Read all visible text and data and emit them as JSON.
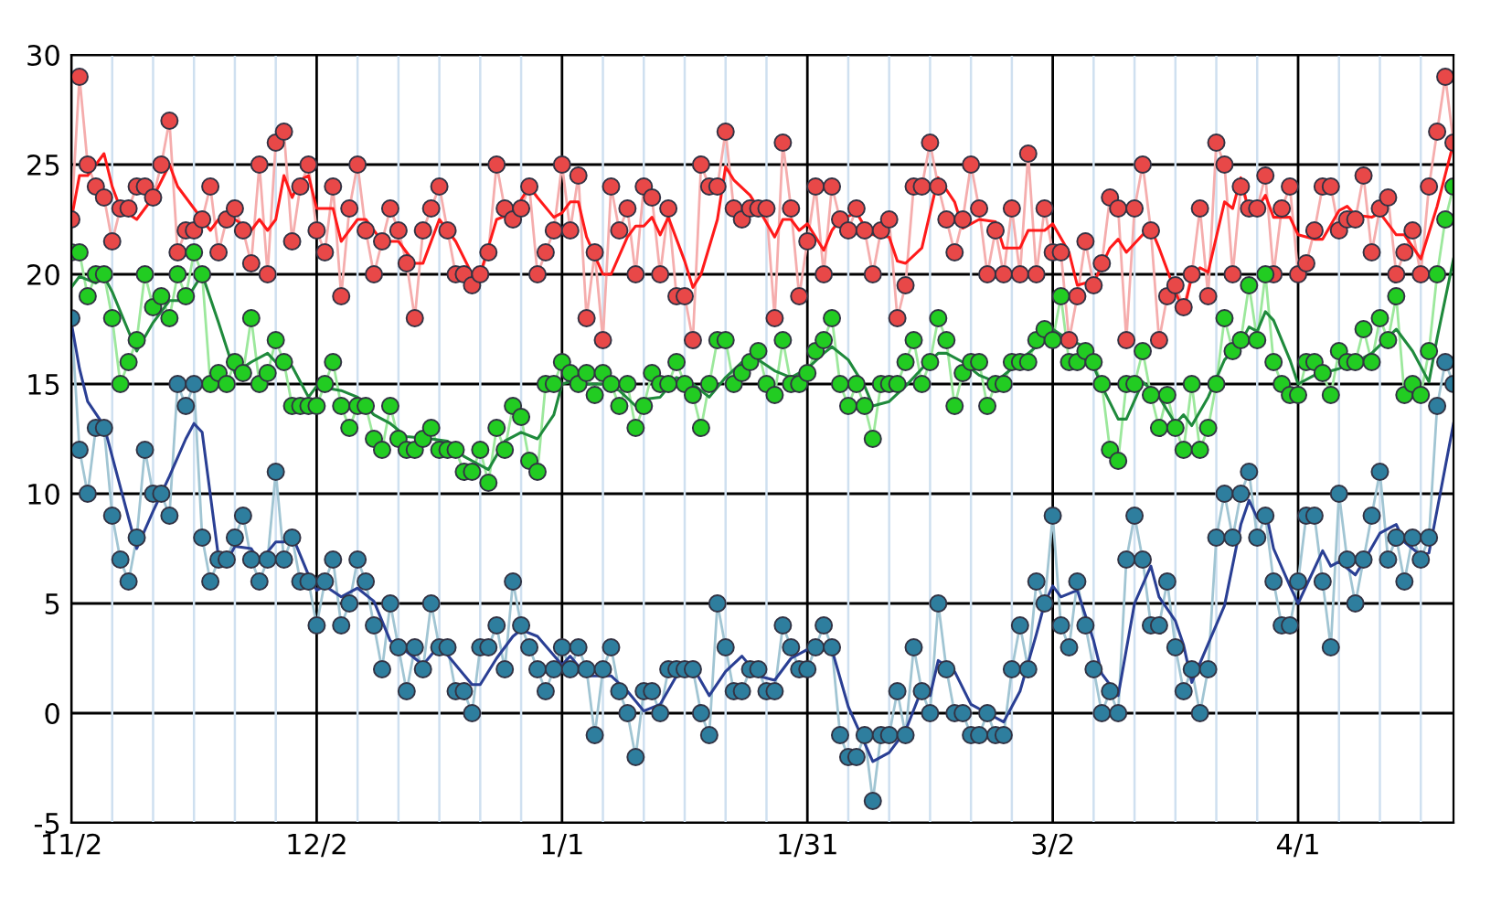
{
  "chart_data": {
    "type": "line",
    "categories": [
      "11/2",
      null,
      null,
      null,
      null,
      null,
      null,
      null,
      null,
      null,
      null,
      null,
      null,
      null,
      null,
      null,
      null,
      null,
      null,
      null,
      null,
      null,
      null,
      null,
      null,
      null,
      null,
      null,
      null,
      null,
      "12/2",
      null,
      null,
      null,
      null,
      null,
      null,
      null,
      null,
      null,
      null,
      null,
      null,
      null,
      null,
      null,
      null,
      null,
      null,
      null,
      null,
      null,
      null,
      null,
      null,
      null,
      null,
      null,
      null,
      null,
      "1/1",
      null,
      null,
      null,
      null,
      null,
      null,
      null,
      null,
      null,
      null,
      null,
      null,
      null,
      null,
      null,
      null,
      null,
      null,
      null,
      null,
      null,
      null,
      null,
      null,
      null,
      null,
      null,
      null,
      null,
      "1/31",
      null,
      null,
      null,
      null,
      null,
      null,
      null,
      null,
      null,
      null,
      null,
      null,
      null,
      null,
      null,
      null,
      null,
      null,
      null,
      null,
      null,
      null,
      null,
      null,
      null,
      null,
      null,
      null,
      null,
      "3/2",
      null,
      null,
      null,
      null,
      null,
      null,
      null,
      null,
      null,
      null,
      null,
      null,
      null,
      null,
      null,
      null,
      null,
      null,
      null,
      null,
      null,
      null,
      null,
      null,
      null,
      null,
      null,
      null,
      null,
      "4/1",
      null,
      null,
      null,
      null,
      null,
      null,
      null,
      null,
      null,
      null,
      null,
      null,
      null,
      null,
      null,
      null,
      null,
      null,
      null
    ],
    "series": [
      {
        "color": "#e84848",
        "marker": "circle",
        "values": [
          22.5,
          29,
          25,
          24,
          23.5,
          21.5,
          23,
          23,
          24,
          24,
          23.5,
          25,
          27,
          21,
          22,
          22,
          22.5,
          24,
          21,
          22.5,
          23,
          22,
          20.5,
          25,
          20,
          26,
          26.5,
          21.5,
          24,
          25,
          22,
          21,
          24,
          19,
          23,
          25,
          22,
          20,
          21.5,
          23,
          22,
          20.5,
          18,
          22,
          23,
          24,
          22,
          20,
          20,
          19.5,
          20,
          21,
          25,
          23,
          22.5,
          23,
          24,
          20,
          21,
          22,
          25,
          22,
          24.5,
          18,
          21,
          17,
          24,
          22,
          23,
          20,
          24,
          23.5,
          20,
          23,
          19,
          19,
          17,
          25,
          24,
          24,
          26.5,
          23,
          22.5,
          23,
          23,
          23,
          18,
          26,
          23,
          19,
          21.5,
          24,
          20,
          24,
          22.5,
          22,
          23,
          22,
          20,
          22,
          22.5,
          18,
          19.5,
          24,
          24,
          26,
          24,
          22.5,
          21,
          22.5,
          25,
          23,
          20,
          22,
          20,
          23,
          20,
          25.5,
          20,
          23,
          21,
          21,
          17,
          19,
          21.5,
          19.5,
          20.5,
          23.5,
          23,
          17,
          23,
          25,
          22,
          17,
          19,
          19.5,
          18.5,
          20,
          23,
          19,
          26,
          25,
          20,
          24,
          23,
          23,
          24.5,
          20,
          23,
          24,
          20,
          20.5,
          22,
          24,
          24,
          22,
          22.5,
          22.5,
          24.5,
          21,
          23,
          23.5,
          20,
          21,
          22,
          20,
          24,
          26.5,
          29,
          26
        ]
      },
      {
        "color": "#22cc22",
        "marker": "circle",
        "values": [
          21,
          21,
          19,
          20,
          20,
          18,
          15,
          16,
          17,
          20,
          18.5,
          19,
          18,
          20,
          19,
          21,
          20,
          15,
          15.5,
          15,
          16,
          15.5,
          18,
          15,
          15.5,
          17,
          16,
          14,
          14,
          14,
          14,
          15,
          16,
          14,
          13,
          14,
          14,
          12.5,
          12,
          14,
          12.5,
          12,
          12,
          12.5,
          13,
          12,
          12,
          12,
          11,
          11,
          12,
          10.5,
          13,
          12,
          14,
          13.5,
          11.5,
          11,
          15,
          15,
          16,
          15.5,
          15,
          15.5,
          14.5,
          15.5,
          15,
          14,
          15,
          13,
          14,
          15.5,
          15,
          15,
          16,
          15,
          14.5,
          13,
          15,
          17,
          17,
          15,
          15.5,
          16,
          16.5,
          15,
          14.5,
          17,
          15,
          15,
          15.5,
          16.5,
          17,
          18,
          15,
          14,
          15,
          14,
          12.5,
          15,
          15,
          15,
          16,
          17,
          15,
          16,
          18,
          17,
          14,
          15.5,
          16,
          16,
          14,
          15,
          15,
          16,
          16,
          16,
          17,
          17.5,
          17,
          19,
          16,
          16,
          16.5,
          16,
          15,
          12,
          11.5,
          15,
          15,
          16.5,
          14.5,
          13,
          14.5,
          13,
          12,
          15,
          12,
          13,
          15,
          18,
          16.5,
          17,
          19.5,
          17,
          20,
          16,
          15,
          14.5,
          14.5,
          16,
          16,
          15.5,
          14.5,
          16.5,
          16,
          16,
          17.5,
          16,
          18,
          17,
          19,
          14.5,
          15,
          14.5,
          16.5,
          20,
          22.5,
          24
        ]
      },
      {
        "color": "#2e7e9e",
        "marker": "circle",
        "values": [
          18,
          12,
          10,
          13,
          13,
          9,
          7,
          6,
          8,
          12,
          10,
          10,
          9,
          15,
          14,
          15,
          8,
          6,
          7,
          7,
          8,
          9,
          7,
          6,
          7,
          11,
          7,
          8,
          6,
          6,
          4,
          6,
          7,
          4,
          5,
          7,
          6,
          4,
          2,
          5,
          3,
          1,
          3,
          2,
          5,
          3,
          3,
          1,
          1,
          0,
          3,
          3,
          4,
          2,
          6,
          4,
          3,
          2,
          1,
          2,
          3,
          2,
          3,
          2,
          -1,
          2,
          3,
          1,
          0,
          -2,
          1,
          1,
          0,
          2,
          2,
          2,
          2,
          0,
          -1,
          5,
          3,
          1,
          1,
          2,
          2,
          1,
          1,
          4,
          3,
          2,
          2,
          3,
          4,
          3,
          -1,
          -2,
          -2,
          -1,
          -4,
          -1,
          -1,
          1,
          -1,
          3,
          1,
          0,
          5,
          2,
          0,
          0,
          -1,
          -1,
          0,
          -1,
          -1,
          2,
          4,
          2,
          6,
          5,
          9,
          4,
          3,
          6,
          4,
          2,
          0,
          1,
          0,
          7,
          9,
          7,
          4,
          4,
          6,
          3,
          1,
          2,
          0,
          2,
          8,
          10,
          8,
          10,
          11,
          8,
          9,
          6,
          4,
          4,
          6,
          9,
          9,
          6,
          3,
          10,
          7,
          5,
          7,
          9,
          11,
          7,
          8,
          6,
          8,
          7,
          8,
          14,
          16,
          15
        ]
      },
      {
        "color": "#ff1a1a",
        "marker": "none",
        "values": [
          22.5,
          24.5,
          24.5,
          null,
          25.5,
          24,
          23,
          null,
          22.5,
          null,
          23.5,
          null,
          25,
          24,
          23.5,
          null,
          22.5,
          22,
          22.5,
          null,
          22.5,
          null,
          22,
          22.5,
          22,
          22.5,
          24.5,
          23.5,
          24.3,
          24.5,
          23,
          null,
          23,
          21.5,
          null,
          22.5,
          22.5,
          22,
          21.5,
          null,
          21.5,
          null,
          20.5,
          20.5,
          null,
          22.5,
          null,
          21.5,
          null,
          20,
          20,
          null,
          22.5,
          null,
          22.8,
          null,
          24,
          23.5,
          null,
          22.6,
          22.8,
          23.3,
          23.3,
          21.7,
          null,
          20,
          20,
          null,
          21.7,
          22.2,
          22.2,
          22.6,
          21.8,
          22.6,
          null,
          20.6,
          19.4,
          20,
          null,
          22.5,
          24.9,
          24.3,
          null,
          23.6,
          23,
          null,
          21.7,
          22.5,
          22.5,
          22,
          22.3,
          null,
          21.1,
          22,
          22.5,
          null,
          22.8,
          22.2,
          21.8,
          null,
          21.7,
          20.6,
          20.5,
          null,
          21.2,
          null,
          24.4,
          null,
          23.3,
          22.1,
          null,
          22.5,
          null,
          22.4,
          21.2,
          null,
          21.2,
          22,
          null,
          22,
          22.3,
          null,
          21,
          19.5,
          19.6,
          19.6,
          null,
          21.2,
          21.6,
          21,
          null,
          21.8,
          22.1,
          21.2,
          null,
          19.2,
          18.3,
          19.9,
          20.3,
          20.1,
          null,
          23.3,
          23,
          24.4,
          22.8,
          23,
          23.6,
          22.6,
          null,
          22.6,
          21.8,
          null,
          21.6,
          21.6,
          null,
          22.9,
          23.1,
          22.7,
          null,
          22.6,
          22.8,
          null,
          21.8,
          21.8,
          null,
          20.7,
          null,
          23.1,
          null,
          26
        ]
      },
      {
        "color": "#1f8a3c",
        "marker": "none",
        "values": [
          19.4,
          19.9,
          null,
          19.6,
          19.9,
          19.2,
          null,
          null,
          16.5,
          null,
          17.8,
          null,
          18.8,
          null,
          18.8,
          null,
          20,
          null,
          17.8,
          null,
          15.5,
          null,
          16,
          null,
          16.4,
          16,
          null,
          15.8,
          null,
          14.4,
          14.9,
          null,
          null,
          14.7,
          null,
          14.4,
          null,
          13.6,
          null,
          13.2,
          null,
          12.6,
          null,
          null,
          12.5,
          null,
          12.4,
          null,
          11.7,
          11.5,
          null,
          11.1,
          null,
          12.4,
          null,
          12.8,
          null,
          12.5,
          null,
          13.6,
          15,
          15.1,
          null,
          15,
          null,
          15,
          null,
          14.7,
          null,
          14,
          14.3,
          null,
          14.4,
          null,
          15.3,
          null,
          15,
          null,
          14.4,
          null,
          15.3,
          null,
          16,
          null,
          16.1,
          null,
          15.6,
          null,
          15.3,
          null,
          15.7,
          null,
          16.4,
          16.7,
          null,
          16.1,
          null,
          14.9,
          14,
          null,
          14.2,
          null,
          14.9,
          null,
          15.7,
          null,
          16.4,
          16.4,
          null,
          16,
          null,
          15.4,
          null,
          15.1,
          null,
          15.7,
          null,
          16.4,
          null,
          17,
          17.5,
          null,
          17,
          null,
          16.7,
          null,
          14.9,
          null,
          13.4,
          13.4,
          null,
          15.1,
          null,
          14.4,
          null,
          13.2,
          13.6,
          13.1,
          null,
          14.4,
          null,
          16.1,
          null,
          16.9,
          17.6,
          17.4,
          18.3,
          17.9,
          null,
          16.1,
          15,
          null,
          15.4,
          null,
          null,
          15.7,
          null,
          16,
          null,
          16.4,
          null,
          null,
          17.5,
          null,
          16.5,
          null,
          15.1,
          17.1,
          null,
          20.7
        ]
      },
      {
        "color": "#2a3f94",
        "marker": "none",
        "values": [
          17.8,
          15.7,
          14.2,
          null,
          13.1,
          null,
          10.3,
          null,
          7.5,
          null,
          9.2,
          null,
          10.8,
          null,
          12.5,
          13.2,
          12.8,
          null,
          7.1,
          6.9,
          7.6,
          null,
          7.5,
          6.9,
          null,
          7.8,
          7.8,
          8.1,
          null,
          6.3,
          5.6,
          5.8,
          null,
          5.3,
          null,
          5.7,
          null,
          5.1,
          null,
          3.3,
          null,
          2.8,
          null,
          2.2,
          null,
          3.1,
          null,
          2.2,
          null,
          1.3,
          1.3,
          null,
          2.5,
          null,
          3.5,
          3.8,
          null,
          3.5,
          null,
          null,
          2.2,
          2.6,
          null,
          1.7,
          null,
          null,
          1.7,
          null,
          1,
          null,
          0.1,
          null,
          0.4,
          null,
          1.7,
          null,
          2.1,
          null,
          0.8,
          null,
          1.9,
          null,
          2.6,
          null,
          1.7,
          null,
          1.5,
          null,
          2.5,
          null,
          2.9,
          null,
          3.1,
          2.9,
          null,
          0.3,
          null,
          null,
          -2.2,
          null,
          -1.8,
          null,
          -0.8,
          null,
          1.1,
          0.8,
          2.4,
          null,
          1.9,
          null,
          0.4,
          null,
          0,
          null,
          -0.4,
          null,
          1,
          null,
          3.6,
          5,
          5.8,
          5.3,
          null,
          5.6,
          null,
          3.3,
          1.8,
          null,
          0.8,
          null,
          5,
          null,
          6.7,
          5.3,
          null,
          4.2,
          3.1,
          1.4,
          null,
          null,
          null,
          4.9,
          null,
          8.6,
          9.7,
          8.9,
          9.3,
          7.5,
          null,
          5.8,
          5,
          null,
          null,
          7.4,
          6.7,
          6.9,
          null,
          6.3,
          6.9,
          null,
          8.2,
          null,
          8.6,
          7.8,
          null,
          7.2,
          7.3,
          null,
          null,
          13.2
        ]
      }
    ],
    "ylim": [
      -5,
      30
    ],
    "yticks": [
      -5,
      0,
      5,
      10,
      15,
      20,
      25,
      30
    ],
    "grid": true,
    "legend": false,
    "line_style": "solid"
  }
}
